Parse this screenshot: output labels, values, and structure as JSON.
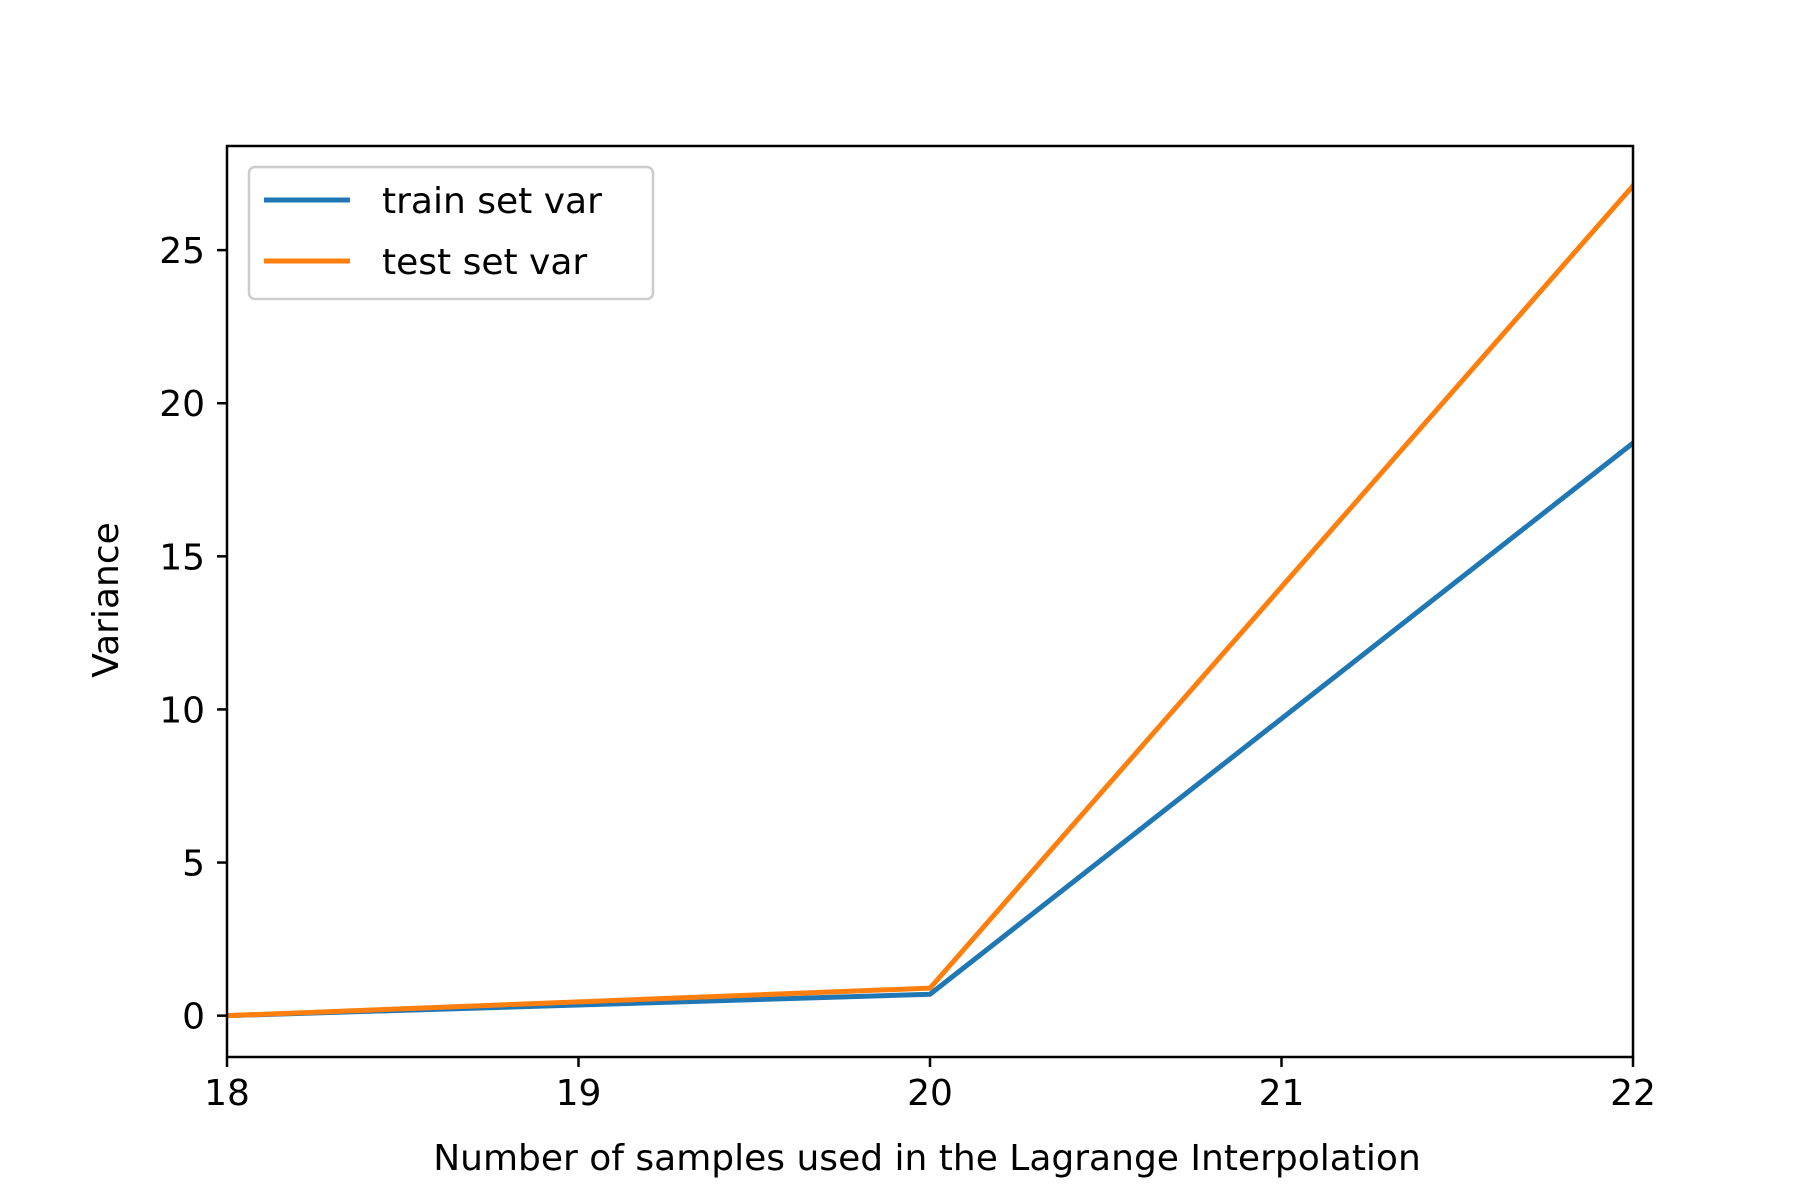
{
  "chart_data": {
    "type": "line",
    "title": "",
    "xlabel": "Number of samples used in the Lagrange Interpolation",
    "ylabel": "Variance",
    "x": [
      18,
      20,
      22
    ],
    "xticks": [
      "18",
      "19",
      "20",
      "21",
      "22"
    ],
    "yticks": [
      "0",
      "5",
      "10",
      "15",
      "20",
      "25"
    ],
    "xlim": [
      18,
      22
    ],
    "ylim": [
      -1.35,
      28.4
    ],
    "grid": false,
    "legend_position": "top-left",
    "series": [
      {
        "name": "train set var",
        "color": "#1f77b4",
        "values": [
          0.0,
          0.7,
          18.7
        ]
      },
      {
        "name": "test set var",
        "color": "#ff7f0e",
        "values": [
          0.0,
          0.9,
          27.1
        ]
      }
    ]
  }
}
